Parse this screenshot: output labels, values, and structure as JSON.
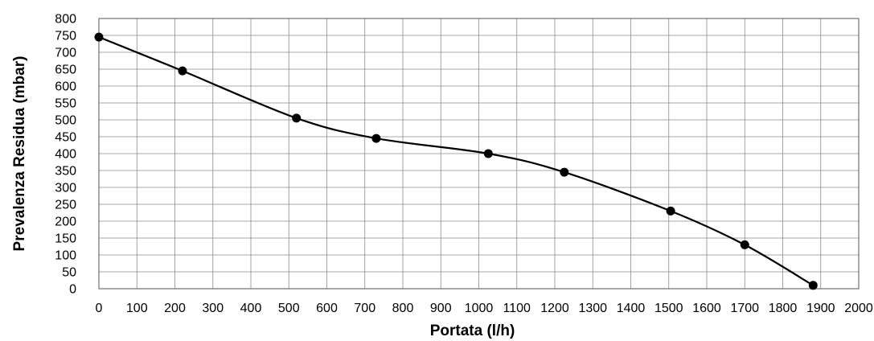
{
  "chart_data": {
    "type": "line",
    "title": "",
    "xlabel": "Portata (l/h)",
    "ylabel": "Prevalenza Residua (mbar)",
    "xlim": [
      0,
      2000
    ],
    "ylim": [
      0,
      800
    ],
    "x_ticks": [
      0,
      100,
      200,
      300,
      400,
      500,
      600,
      700,
      800,
      900,
      1000,
      1100,
      1200,
      1300,
      1400,
      1500,
      1600,
      1700,
      1800,
      1900,
      2000
    ],
    "y_ticks": [
      0,
      50,
      100,
      150,
      200,
      250,
      300,
      350,
      400,
      450,
      500,
      550,
      600,
      650,
      700,
      750,
      800
    ],
    "grid": true,
    "legend": "none",
    "line_color": "#000000",
    "series": [
      {
        "x": [
          0,
          220,
          520,
          730,
          1025,
          1225,
          1505,
          1700,
          1880
        ],
        "y": [
          745,
          645,
          505,
          445,
          400,
          345,
          230,
          130,
          10
        ]
      }
    ]
  }
}
